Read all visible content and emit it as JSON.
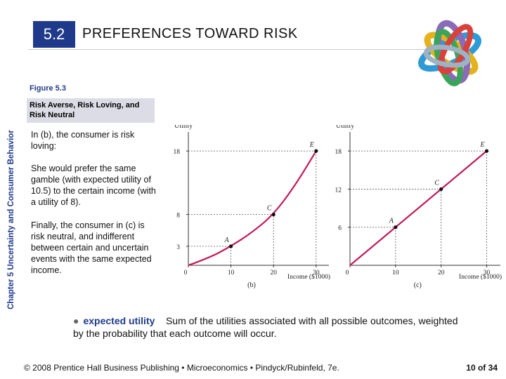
{
  "header": {
    "section_number": "5.2",
    "title": "PREFERENCES TOWARD RISK"
  },
  "side_label": "Chapter 5 Uncertainty and Consumer Behavior",
  "figure": {
    "label": "Figure 5.3",
    "caption": "Risk Averse, Risk Loving, and Risk Neutral"
  },
  "body": {
    "p1": "In (b), the consumer is risk loving:",
    "p2": "She would prefer the same gamble (with expected utility of 10.5) to the certain income (with a utility of 8).",
    "p3": "Finally, the consumer in (c) is risk neutral, and indifferent between certain and uncertain events with the same expected income."
  },
  "definition": {
    "bullet": "●",
    "term": "expected utility",
    "text": "Sum of the utilities associated with all possible outcomes, weighted by the probability that each outcome will occur."
  },
  "footer": {
    "text": "© 2008 Prentice Hall Business Publishing • Microeconomics • Pindyck/Rubinfeld, 7e.",
    "page": "10 of 34"
  },
  "colors": {
    "accent": "#1f3a8a",
    "curve": "#c2185b",
    "caption_bg": "#dcdce6"
  },
  "chart_data": [
    {
      "type": "line",
      "panel": "(b)",
      "ylabel": "Utility",
      "xlabel": "Income ($1000)",
      "x_ticks": [
        0,
        10,
        20,
        30
      ],
      "y_ticks": [
        3,
        8,
        18
      ],
      "series": [
        {
          "x": [
            0,
            5,
            10,
            15,
            20,
            25,
            30
          ],
          "y": [
            0,
            1.2,
            3,
            5.2,
            8,
            12.5,
            18
          ]
        }
      ],
      "points": [
        {
          "label": "A",
          "x": 10,
          "y": 3
        },
        {
          "label": "C",
          "x": 20,
          "y": 8
        },
        {
          "label": "E",
          "x": 30,
          "y": 18
        }
      ],
      "xlim": [
        0,
        33
      ],
      "ylim": [
        0,
        21
      ]
    },
    {
      "type": "line",
      "panel": "(c)",
      "ylabel": "Utility",
      "xlabel": "Income ($1000)",
      "x_ticks": [
        0,
        10,
        20,
        30
      ],
      "y_ticks": [
        6,
        12,
        18
      ],
      "series": [
        {
          "x": [
            0,
            30
          ],
          "y": [
            0,
            18
          ]
        }
      ],
      "points": [
        {
          "label": "A",
          "x": 10,
          "y": 6
        },
        {
          "label": "C",
          "x": 20,
          "y": 12
        },
        {
          "label": "E",
          "x": 30,
          "y": 18
        }
      ],
      "xlim": [
        0,
        33
      ],
      "ylim": [
        0,
        21
      ]
    }
  ]
}
